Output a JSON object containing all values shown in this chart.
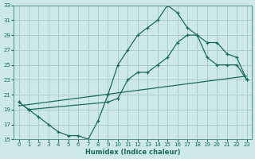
{
  "xlabel": "Humidex (Indice chaleur)",
  "xlim": [
    -0.5,
    23.5
  ],
  "ylim": [
    15,
    33
  ],
  "xticks": [
    0,
    1,
    2,
    3,
    4,
    5,
    6,
    7,
    8,
    9,
    10,
    11,
    12,
    13,
    14,
    15,
    16,
    17,
    18,
    19,
    20,
    21,
    22,
    23
  ],
  "yticks": [
    15,
    17,
    19,
    21,
    23,
    25,
    27,
    29,
    31,
    33
  ],
  "bg_color": "#cce8e8",
  "grid_color": "#aacccc",
  "line_color": "#1a6b5a",
  "line1_x": [
    0,
    1,
    2,
    3,
    4,
    5,
    6,
    7,
    8,
    9,
    10,
    11,
    12,
    13,
    14,
    15,
    16,
    17,
    18,
    19,
    20,
    21,
    22,
    23
  ],
  "line1_y": [
    20,
    19,
    18,
    17,
    16,
    15.5,
    15.5,
    15,
    17.5,
    21,
    25,
    27,
    29,
    30,
    31,
    33,
    32,
    30,
    29,
    26,
    25,
    25,
    25,
    23
  ],
  "line2_x": [
    0,
    1,
    9,
    10,
    11,
    12,
    13,
    14,
    15,
    16,
    17,
    18,
    19,
    20,
    21,
    22,
    23
  ],
  "line2_y": [
    20,
    19,
    20,
    20.5,
    23,
    24,
    24,
    25,
    26,
    28,
    29,
    29,
    28,
    28,
    26.5,
    26,
    23
  ],
  "line3_x": [
    0,
    23
  ],
  "line3_y": [
    19.5,
    23.5
  ]
}
